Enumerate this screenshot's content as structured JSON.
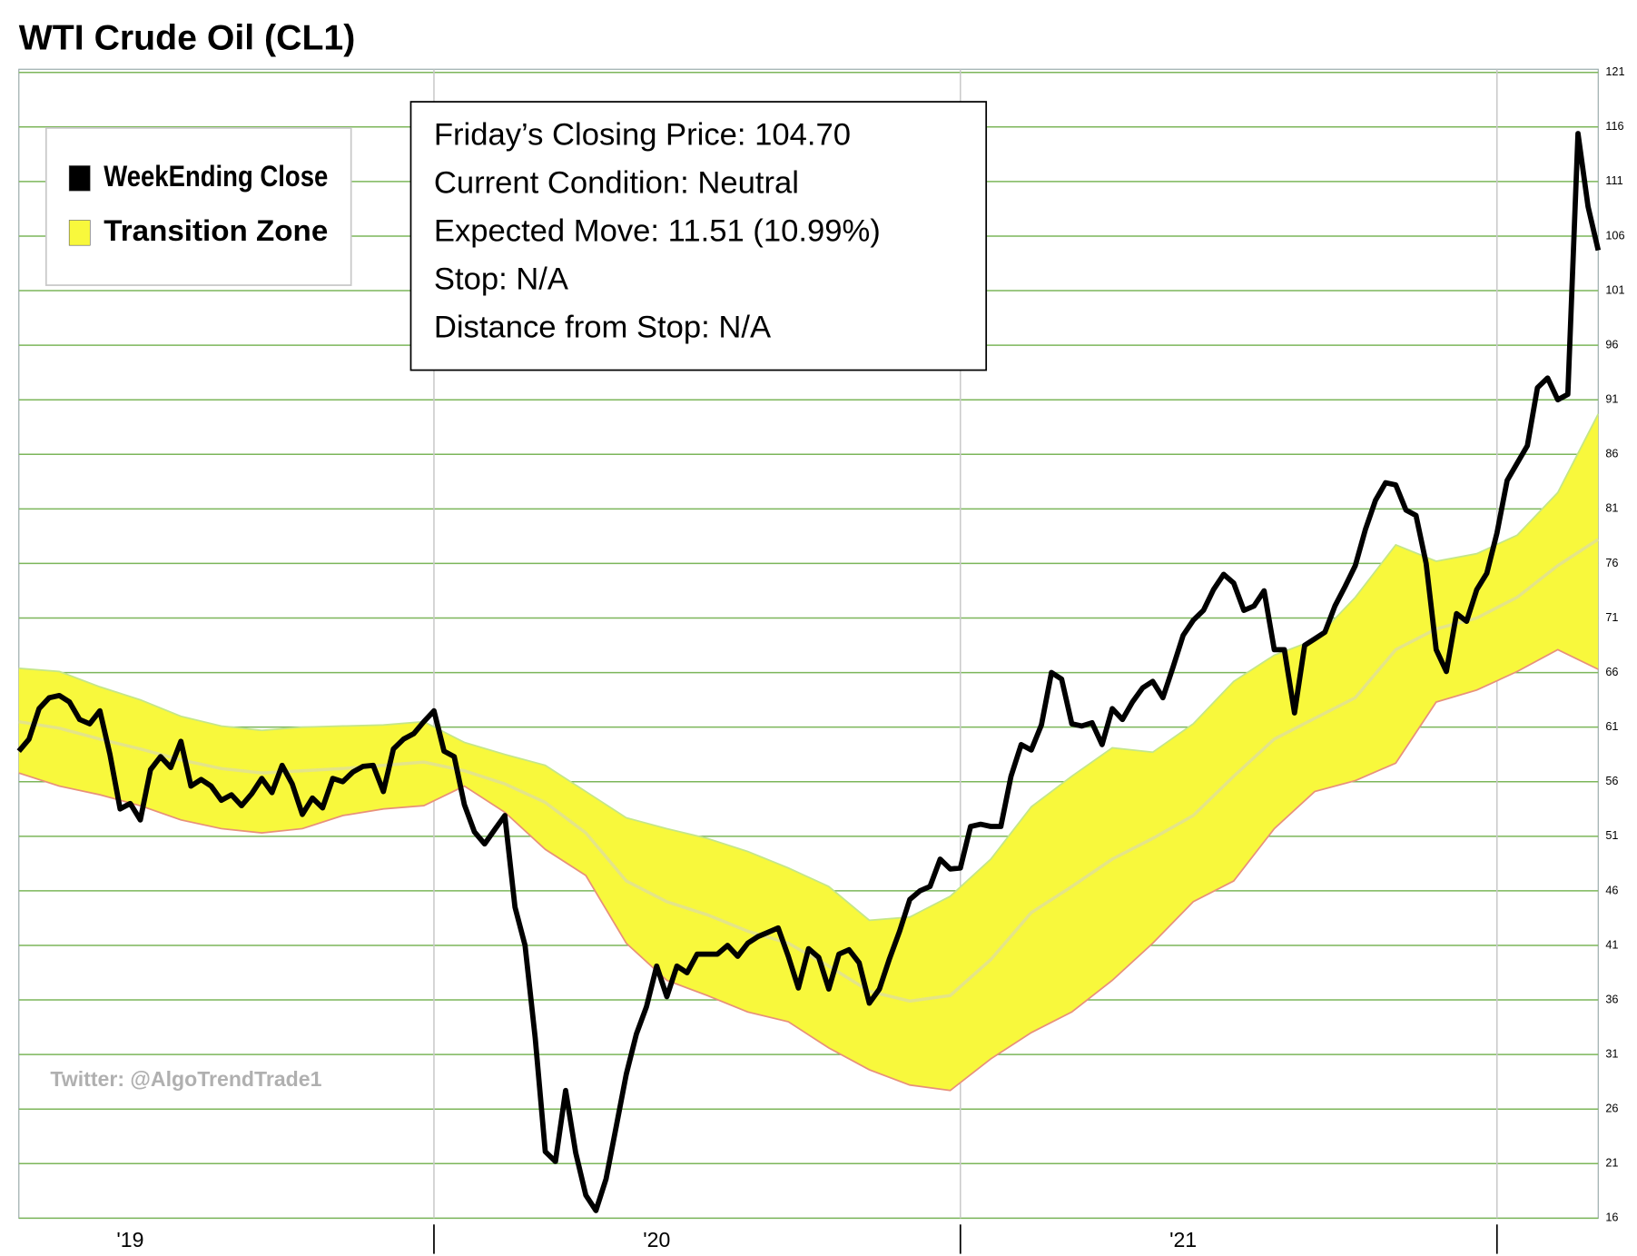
{
  "chart_data": {
    "type": "line",
    "title": "WTI Crude Oil (CL1)",
    "annotations": [
      "Friday’s Closing Price: 104.70",
      "Current Condition: Neutral",
      "Expected Move: 11.51 (10.99%)",
      "Stop: N/A",
      "Distance from Stop: N/A"
    ],
    "watermark": "Twitter: @AlgoTrendTrade1",
    "legend": "upper-left",
    "grid": true,
    "grid_color": "#7cb65a",
    "categories": [
      null,
      null,
      null,
      null,
      null,
      null,
      null,
      null,
      null,
      null,
      null,
      null,
      null,
      null,
      null,
      null,
      null,
      null,
      null,
      null,
      null,
      null,
      null,
      null,
      null,
      null,
      null,
      null,
      null,
      null,
      null,
      null,
      null,
      null,
      null,
      null,
      null,
      null,
      null,
      null,
      null,
      null,
      null,
      null,
      null,
      null,
      null,
      null,
      null,
      null,
      null,
      null,
      null,
      null,
      null,
      null,
      null,
      null,
      null,
      null,
      null,
      null,
      null,
      null,
      null,
      null,
      null,
      null,
      null,
      null,
      null,
      null,
      null,
      null,
      null,
      null,
      null,
      null,
      null,
      null,
      null,
      null,
      null,
      null,
      null,
      null,
      null,
      null,
      null,
      null,
      null,
      null,
      null,
      null,
      null,
      null,
      null,
      null,
      null,
      null,
      null,
      null,
      null,
      null,
      null,
      null,
      null,
      null,
      null,
      null,
      null,
      null,
      null,
      null,
      null,
      null,
      null,
      null,
      null,
      null,
      null,
      null,
      null,
      null,
      null,
      null,
      null,
      null,
      null,
      null,
      null,
      null,
      null,
      null,
      null,
      null,
      null,
      null,
      null,
      null,
      null,
      null,
      null,
      null,
      null,
      null,
      null,
      null,
      null,
      null,
      null,
      null,
      null,
      null,
      null,
      null,
      null
    ],
    "xlim": [
      0,
      156
    ],
    "xticks": [
      {
        "value": 11,
        "label": "'19"
      },
      {
        "value": 63,
        "label": "'20"
      },
      {
        "value": 115,
        "label": "'21"
      }
    ],
    "xgrid": [
      41,
      93,
      146
    ],
    "ylim": [
      16,
      121
    ],
    "yticks": [
      16,
      21,
      26,
      31,
      36,
      41,
      46,
      51,
      56,
      61,
      66,
      71,
      76,
      81,
      86,
      91,
      96,
      101,
      106,
      111,
      116,
      121
    ],
    "series": [
      {
        "name": "WeekEnding Close",
        "color": "#000000",
        "values": [
          58.8,
          59.9,
          62.7,
          63.7,
          63.9,
          63.3,
          61.7,
          61.3,
          62.5,
          58.5,
          53.5,
          54.0,
          52.5,
          57.1,
          58.3,
          57.3,
          59.7,
          55.6,
          56.2,
          55.6,
          54.3,
          54.8,
          53.8,
          54.9,
          56.3,
          55.0,
          57.5,
          55.8,
          53.0,
          54.5,
          53.6,
          56.3,
          56.0,
          56.9,
          57.4,
          57.5,
          55.1,
          59.0,
          59.9,
          60.4,
          61.5,
          62.5,
          58.8,
          58.3,
          53.9,
          51.4,
          50.3,
          51.6,
          52.9,
          44.5,
          41.0,
          32.5,
          22.1,
          21.2,
          27.7,
          22.0,
          18.1,
          16.7,
          19.6,
          24.4,
          29.2,
          32.9,
          35.4,
          39.1,
          36.3,
          39.1,
          38.5,
          40.2,
          40.2,
          40.2,
          41.0,
          40.0,
          41.2,
          41.8,
          42.2,
          42.6,
          40.0,
          37.1,
          40.7,
          39.9,
          37.0,
          40.2,
          40.6,
          39.4,
          35.7,
          37.0,
          39.8,
          42.3,
          45.2,
          46.0,
          46.4,
          48.9,
          48.0,
          48.1,
          51.9,
          52.1,
          51.9,
          51.9,
          56.5,
          59.4,
          58.9,
          61.2,
          66.0,
          65.4,
          61.3,
          61.1,
          61.4,
          59.4,
          62.7,
          61.7,
          63.3,
          64.6,
          65.2,
          63.7,
          66.5,
          69.4,
          70.8,
          71.7,
          73.6,
          75.0,
          74.2,
          71.7,
          72.1,
          73.5,
          68.1,
          68.1,
          62.3,
          68.5,
          69.1,
          69.7,
          72.1,
          73.9,
          75.8,
          79.1,
          81.8,
          83.4,
          83.2,
          80.9,
          80.4,
          76.0,
          68.1,
          66.1,
          71.4,
          70.7,
          73.6,
          75.1,
          78.8,
          83.6,
          85.2,
          86.8,
          92.1,
          93.0,
          91.0,
          91.5,
          115.4,
          108.7,
          104.7
        ]
      },
      {
        "name": "Transition Zone",
        "color": "#f8f83c",
        "upper_color": "#c4e68a",
        "lower_color": "#e8907a",
        "mid_color": "#e4e488",
        "x": [
          0,
          4,
          8,
          12,
          16,
          20,
          24,
          28,
          32,
          36,
          40,
          44,
          48,
          52,
          56,
          60,
          64,
          68,
          72,
          76,
          80,
          84,
          88,
          92,
          96,
          100,
          104,
          108,
          112,
          116,
          120,
          124,
          128,
          132,
          136,
          140,
          144,
          148,
          152,
          156
        ],
        "upper": [
          66.4,
          66.1,
          64.7,
          63.5,
          62.0,
          61.1,
          60.7,
          61.0,
          61.1,
          61.2,
          61.5,
          59.6,
          58.5,
          57.5,
          55.1,
          52.7,
          51.7,
          50.8,
          49.6,
          48.1,
          46.4,
          43.3,
          43.6,
          45.5,
          48.9,
          53.7,
          56.5,
          59.1,
          58.7,
          61.3,
          65.2,
          67.6,
          69.0,
          72.9,
          77.7,
          76.2,
          76.9,
          78.6,
          82.5,
          89.7
        ],
        "lower": [
          56.8,
          55.6,
          54.8,
          53.8,
          52.5,
          51.7,
          51.3,
          51.7,
          52.9,
          53.5,
          53.8,
          55.6,
          53.2,
          49.8,
          47.4,
          41.2,
          37.8,
          36.4,
          34.9,
          34.0,
          31.6,
          29.6,
          28.2,
          27.7,
          30.6,
          33.0,
          34.9,
          37.8,
          41.2,
          45.0,
          46.9,
          51.7,
          55.1,
          56.1,
          57.7,
          63.3,
          64.4,
          66.1,
          68.1,
          66.3
        ],
        "values": [
          61.5,
          60.9,
          59.9,
          59.0,
          58.0,
          57.2,
          56.8,
          57.0,
          57.2,
          57.5,
          57.8,
          57.0,
          55.8,
          54.1,
          51.3,
          46.9,
          45.0,
          43.8,
          42.3,
          41.2,
          39.1,
          36.8,
          35.9,
          36.4,
          39.7,
          44.0,
          46.4,
          48.9,
          50.8,
          52.9,
          56.5,
          59.9,
          61.8,
          63.7,
          68.1,
          70.0,
          71.0,
          72.9,
          75.8,
          78.2
        ]
      }
    ]
  }
}
